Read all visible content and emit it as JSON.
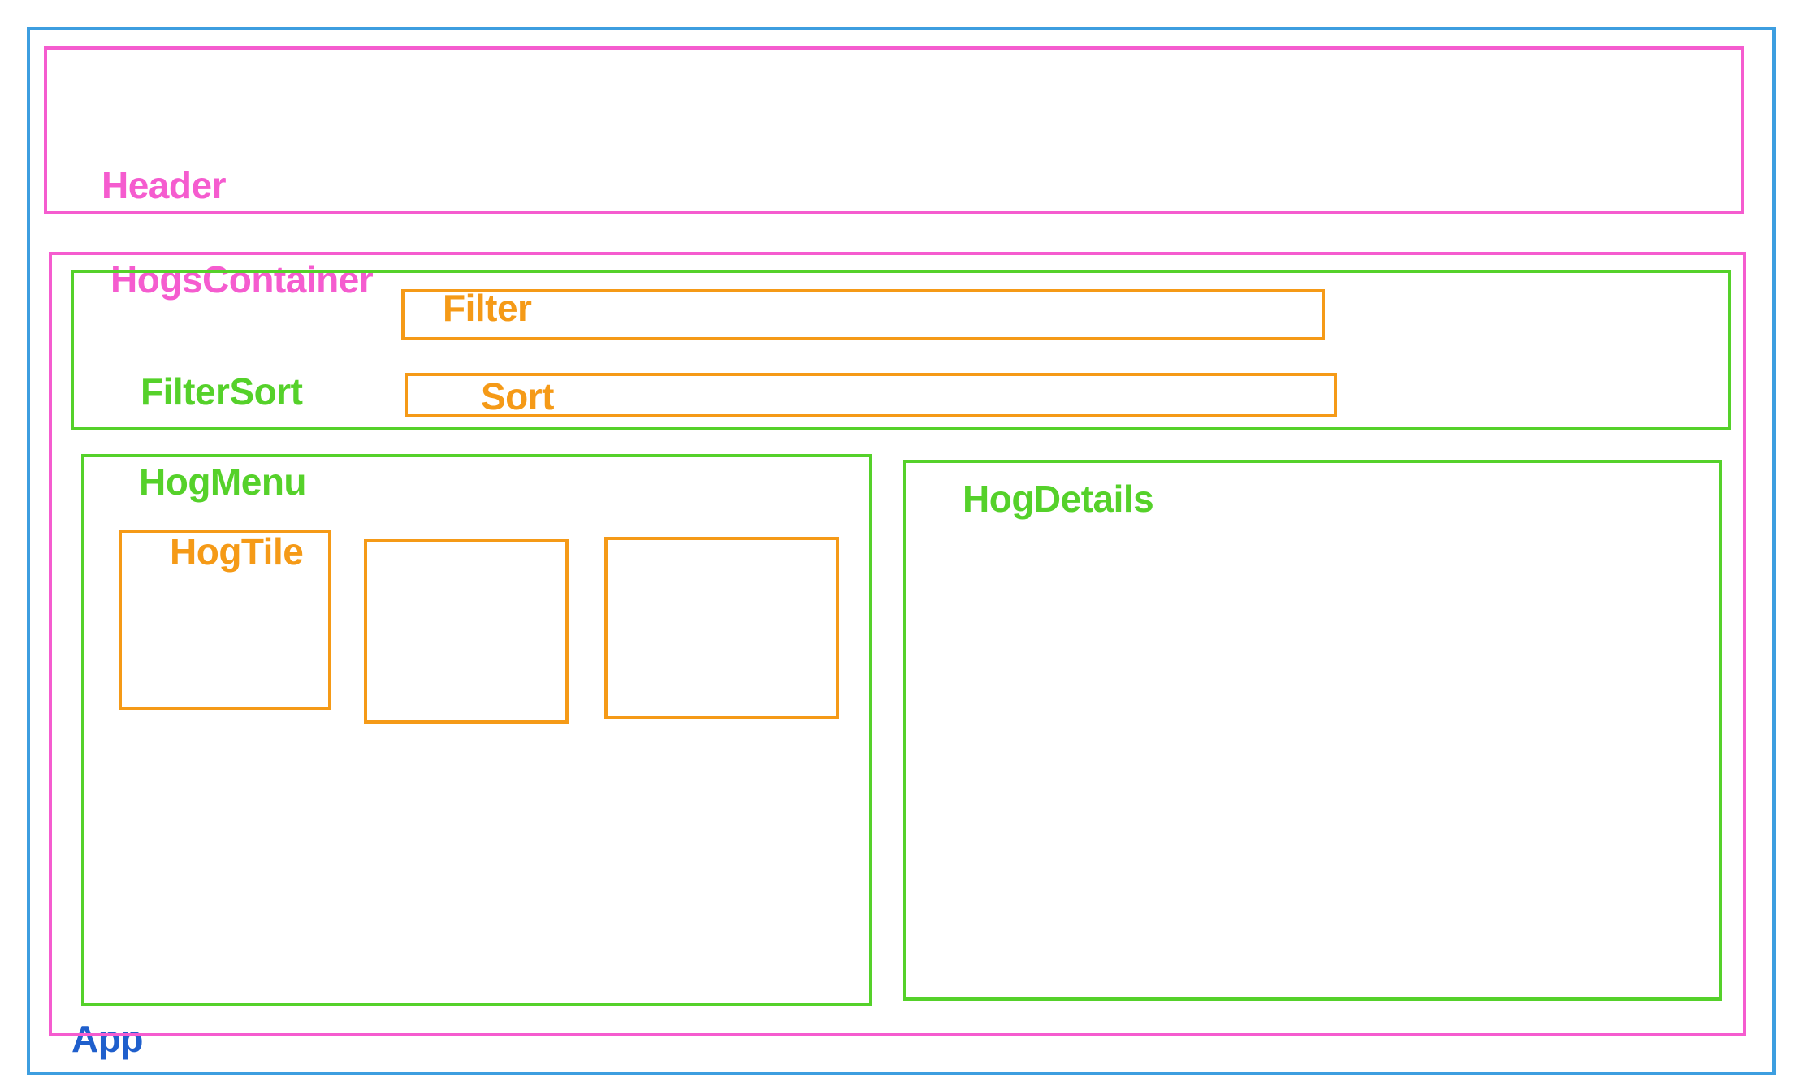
{
  "colors": {
    "app_border": "#3d9ee0",
    "app_label": "#1f5fcc",
    "level1": "#f55ccf",
    "level2": "#55d12a",
    "level3": "#f59a17"
  },
  "labels": {
    "app": "App",
    "header": "Header",
    "hogs_container": "HogsContainer",
    "filter_sort": "FilterSort",
    "filter": "Filter",
    "sort": "Sort",
    "hog_menu": "HogMenu",
    "hog_tile": "HogTile",
    "hog_details": "HogDetails"
  }
}
